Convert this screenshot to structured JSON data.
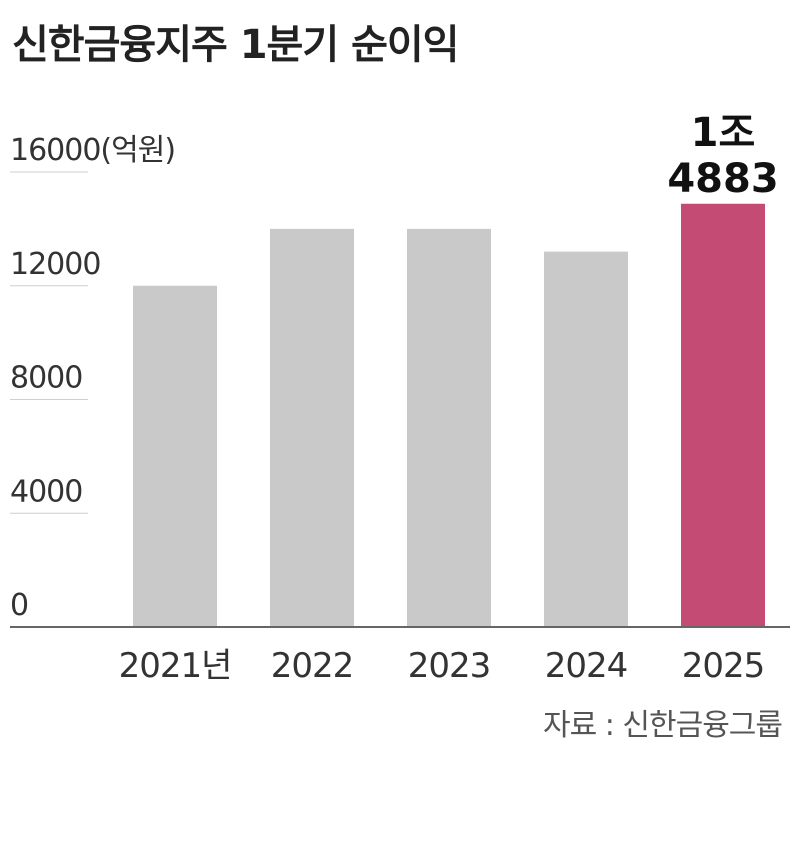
{
  "title": "신한금융지주 1분기 순이익",
  "source": "자료 : 신한금융그룹",
  "colors": {
    "bar": "#c9c9c9",
    "highlight": "#c44b74",
    "axis": "#666666",
    "grid": "#cfcfcf"
  },
  "chart_data": {
    "type": "bar",
    "title": "신한금융지주 1분기 순이익",
    "ylabel": "",
    "unit": "(억원)",
    "categories": [
      "2021년",
      "2022",
      "2023",
      "2024",
      "2025"
    ],
    "values": [
      12000,
      14000,
      14000,
      13200,
      14883
    ],
    "ylim": [
      0,
      16000
    ],
    "yticks": [
      {
        "value": 16000,
        "label": "16000(억원)"
      },
      {
        "value": 12000,
        "label": "12000"
      },
      {
        "value": 8000,
        "label": "8000"
      },
      {
        "value": 4000,
        "label": "4000"
      },
      {
        "value": 0,
        "label": "0"
      }
    ],
    "highlight_index": 4,
    "highlight_label": [
      "1조",
      "4883"
    ],
    "grid": true
  }
}
